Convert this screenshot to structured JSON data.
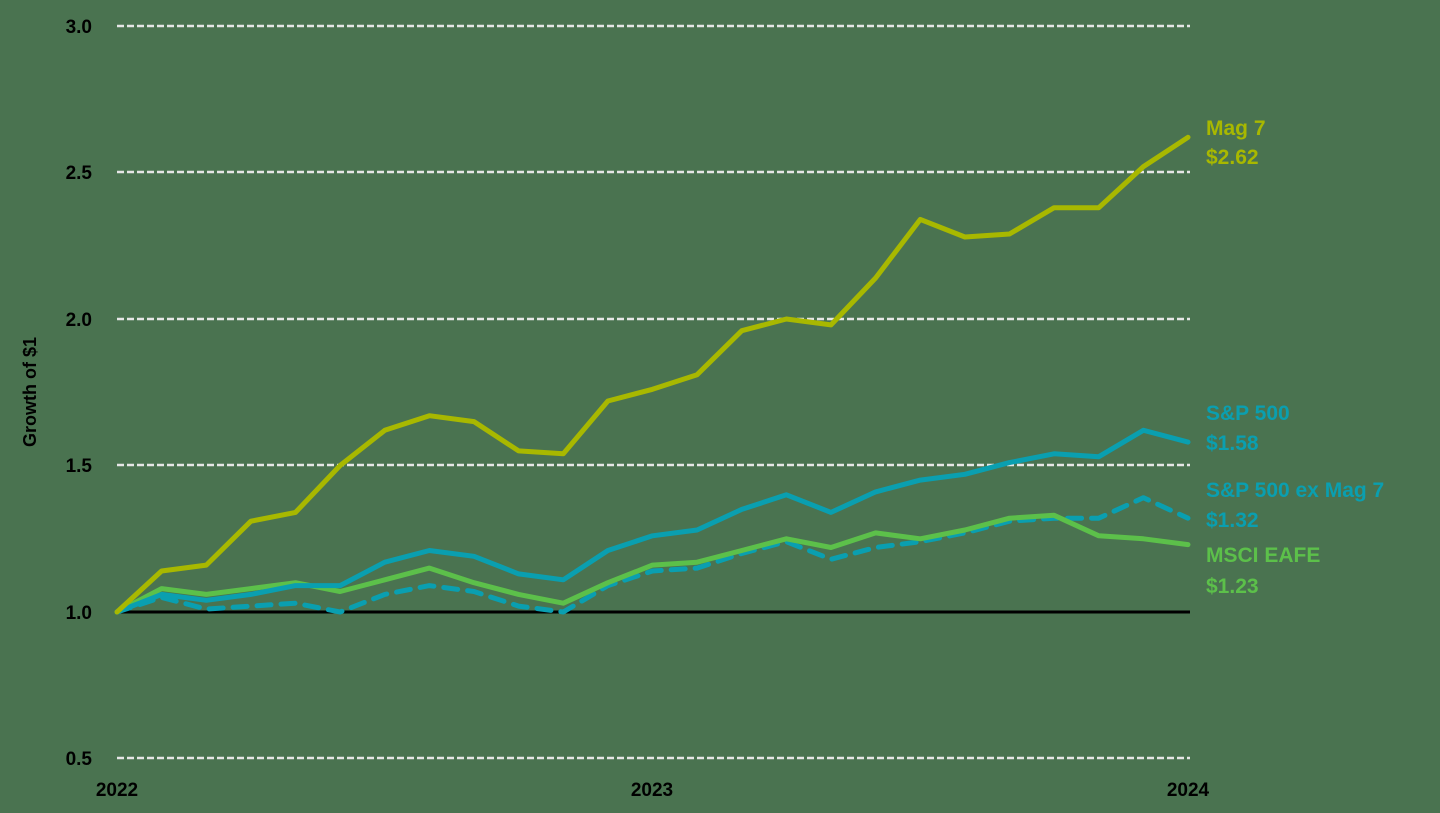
{
  "chart_data": {
    "type": "line",
    "title": "",
    "xlabel": "",
    "ylabel": "Growth of $1",
    "ylim": [
      0.5,
      3.0
    ],
    "y_ticks": [
      "3.0",
      "2.5",
      "2.0",
      "1.5",
      "1.0",
      "0.5"
    ],
    "y_tick_values": [
      3.0,
      2.5,
      2.0,
      1.5,
      1.0,
      0.5
    ],
    "x_ticks": [
      "2022",
      "2023",
      "2024"
    ],
    "x_tick_index": [
      0,
      12,
      24
    ],
    "grid": "horizontal dashed",
    "baseline": 1.0,
    "legend_position": "right, inline end labels",
    "x": [
      "2022-01",
      "2022-02",
      "2022-03",
      "2022-04",
      "2022-05",
      "2022-06",
      "2022-07",
      "2022-08",
      "2022-09",
      "2022-10",
      "2022-11",
      "2022-12",
      "2023-01",
      "2023-02",
      "2023-03",
      "2023-04",
      "2023-05",
      "2023-06",
      "2023-07",
      "2023-08",
      "2023-09",
      "2023-10",
      "2023-11",
      "2023-12",
      "2024-01"
    ],
    "series": [
      {
        "name": "Mag 7",
        "end_label": "$2.62",
        "color": "#a8b800",
        "style": "solid",
        "values": [
          1.0,
          1.14,
          1.16,
          1.31,
          1.34,
          1.5,
          1.62,
          1.67,
          1.65,
          1.55,
          1.54,
          1.72,
          1.76,
          1.81,
          1.96,
          2.0,
          1.98,
          2.14,
          2.34,
          2.28,
          2.29,
          2.38,
          2.38,
          2.52,
          2.62
        ]
      },
      {
        "name": "S&P 500",
        "end_label": "$1.58",
        "color": "#0a9fb0",
        "style": "solid",
        "values": [
          1.0,
          1.06,
          1.04,
          1.06,
          1.09,
          1.09,
          1.17,
          1.21,
          1.19,
          1.13,
          1.11,
          1.21,
          1.26,
          1.28,
          1.35,
          1.4,
          1.34,
          1.41,
          1.45,
          1.47,
          1.51,
          1.54,
          1.53,
          1.62,
          1.58
        ]
      },
      {
        "name": "S&P 500 ex Mag 7",
        "end_label": "$1.32",
        "color": "#0a9fb0",
        "style": "dashed",
        "values": [
          1.0,
          1.05,
          1.01,
          1.02,
          1.03,
          1.0,
          1.06,
          1.09,
          1.07,
          1.02,
          1.0,
          1.09,
          1.14,
          1.15,
          1.2,
          1.24,
          1.18,
          1.22,
          1.24,
          1.27,
          1.31,
          1.32,
          1.32,
          1.39,
          1.32
        ]
      },
      {
        "name": "MSCI EAFE",
        "end_label": "$1.23",
        "color": "#5cc04a",
        "style": "solid",
        "values": [
          1.0,
          1.08,
          1.06,
          1.08,
          1.1,
          1.07,
          1.11,
          1.15,
          1.1,
          1.06,
          1.03,
          1.1,
          1.16,
          1.17,
          1.21,
          1.25,
          1.22,
          1.27,
          1.25,
          1.28,
          1.32,
          1.33,
          1.26,
          1.25,
          1.23
        ]
      }
    ]
  },
  "labels": {
    "mag7": {
      "name": "Mag 7",
      "value": "$2.62"
    },
    "sp500": {
      "name": "S&P 500",
      "value": "$1.58"
    },
    "sp500ex": {
      "name": "S&P 500 ex Mag 7",
      "value": "$1.32"
    },
    "eafe": {
      "name": "MSCI EAFE",
      "value": "$1.23"
    }
  },
  "axis": {
    "ylabel": "Growth of $1",
    "y": [
      "3.0",
      "2.5",
      "2.0",
      "1.5",
      "1.0",
      "0.5"
    ],
    "x": [
      "2022",
      "2023",
      "2024"
    ]
  },
  "colors": {
    "background": "#4a7350",
    "mag7": "#a8b800",
    "sp500": "#0a9fb0",
    "eafe": "#5cc04a",
    "grid": "#e6e6e6",
    "axis_text": "#000000"
  }
}
